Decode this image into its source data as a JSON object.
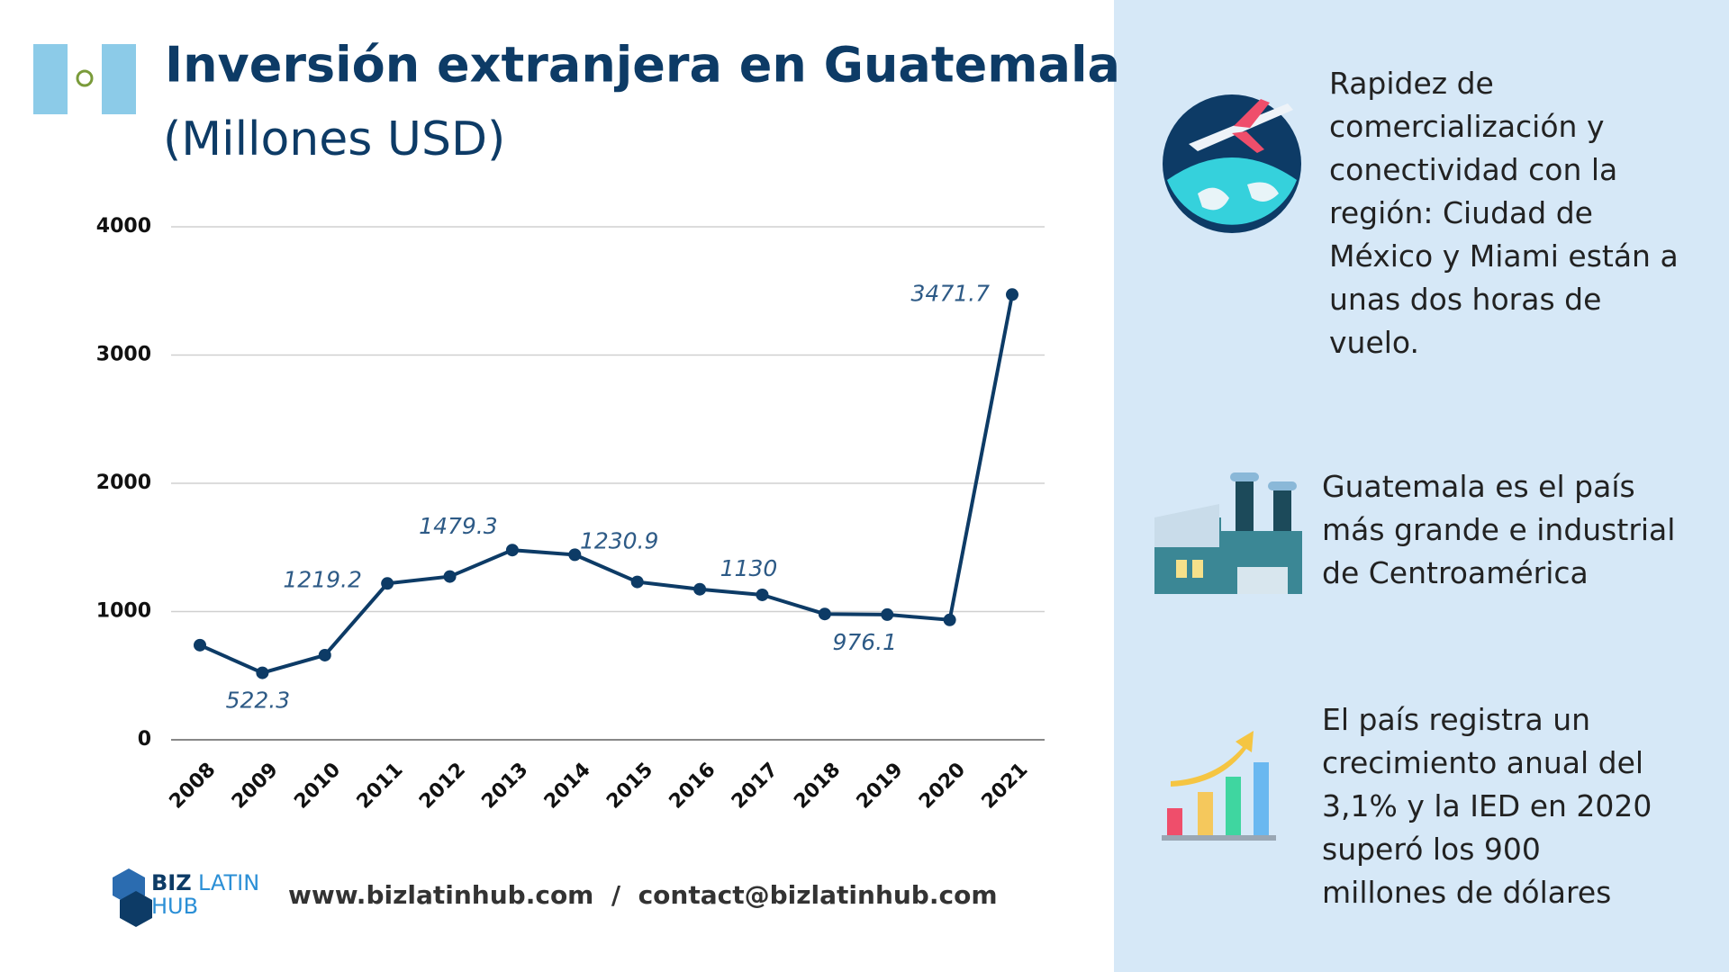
{
  "chart_data": {
    "type": "line",
    "title": "Inversión extranjera en Guatemala",
    "subtitle": "(Millones USD)",
    "categories": [
      "2008",
      "2009",
      "2010",
      "2011",
      "2012",
      "2013",
      "2014",
      "2015",
      "2016",
      "2017",
      "2018",
      "2019",
      "2020",
      "2021"
    ],
    "series": [
      {
        "name": "Inversión extranjera",
        "color": "#0d3b66",
        "values": [
          738,
          522.3,
          660,
          1219.2,
          1273,
          1479.3,
          1443,
          1230.9,
          1174,
          1130,
          981,
          976.1,
          935,
          3471.7
        ],
        "value_labels": [
          null,
          "522.3",
          null,
          "1219.2",
          null,
          "1479.3",
          null,
          "1230.9",
          null,
          "1130",
          null,
          "976.1",
          null,
          "3471.7"
        ]
      }
    ],
    "ylim": [
      0,
      4000
    ],
    "yticks": [
      0,
      1000,
      2000,
      3000,
      4000
    ],
    "grid": true
  },
  "footer": {
    "logo_biz": "BIZ",
    "logo_latin": "LATIN",
    "logo_hub": "HUB",
    "contact": "www.bizlatinhub.com  /  contact@bizlatinhub.com"
  },
  "features": [
    {
      "lines": [
        "Rapidez de",
        "comercialización y",
        "conectividad con la",
        "región: Ciudad de",
        "México y Miami están a",
        "unas dos horas de",
        "vuelo."
      ]
    },
    {
      "lines": [
        "Guatemala es el país",
        "más grande e industrial",
        "de Centroamérica"
      ]
    },
    {
      "lines": [
        "El país registra un",
        "crecimiento anual del",
        "3,1% y la IED en 2020",
        "superó los 900",
        "millones de dólares"
      ]
    }
  ]
}
